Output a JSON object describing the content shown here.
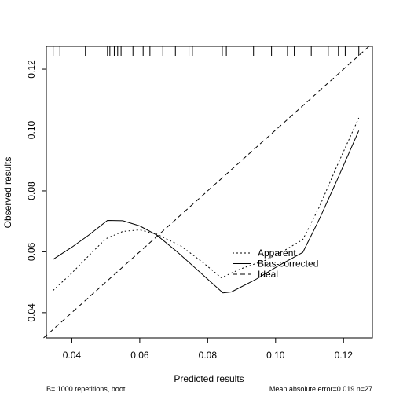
{
  "chart_data": {
    "type": "line",
    "title": "",
    "xlabel": "Predicted results",
    "ylabel": "Observed results",
    "xlim": [
      0.0325,
      0.1285
    ],
    "ylim": [
      0.0317,
      0.1275
    ],
    "x_ticks": [
      0.04,
      0.06,
      0.08,
      0.1,
      0.12
    ],
    "x_tick_labels": [
      "0.04",
      "0.06",
      "0.08",
      "0.10",
      "0.12"
    ],
    "y_ticks": [
      0.04,
      0.06,
      0.08,
      0.1,
      0.12
    ],
    "y_tick_labels": [
      "0.04",
      "0.06",
      "0.08",
      "0.10",
      "0.12"
    ],
    "grid": false,
    "legend_position": "center-right",
    "series": [
      {
        "name": "Apparent",
        "line_style": "dotted",
        "x": [
          0.0345,
          0.04,
          0.045,
          0.05,
          0.055,
          0.06,
          0.065,
          0.072,
          0.078,
          0.084,
          0.09,
          0.097,
          0.103,
          0.108,
          0.113,
          0.118,
          0.1245
        ],
        "y": [
          0.0473,
          0.053,
          0.0587,
          0.0643,
          0.0667,
          0.0672,
          0.0658,
          0.062,
          0.057,
          0.0515,
          0.0545,
          0.0572,
          0.0607,
          0.064,
          0.075,
          0.088,
          0.104
        ]
      },
      {
        "name": "Bias-corrected",
        "line_style": "solid",
        "x": [
          0.0345,
          0.04,
          0.045,
          0.0505,
          0.055,
          0.06,
          0.065,
          0.071,
          0.078,
          0.0845,
          0.087,
          0.094,
          0.101,
          0.108,
          0.113,
          0.118,
          0.1245
        ],
        "y": [
          0.0575,
          0.0615,
          0.0655,
          0.0703,
          0.0702,
          0.0685,
          0.0655,
          0.06,
          0.053,
          0.0465,
          0.0468,
          0.0508,
          0.0555,
          0.0598,
          0.071,
          0.0833,
          0.0998
        ]
      },
      {
        "name": "Ideal",
        "line_style": "dashed",
        "x": [
          0.0317,
          0.1275
        ],
        "y": [
          0.0317,
          0.1275
        ]
      }
    ],
    "rug_ticks_x": [
      0.0345,
      0.0365,
      0.044,
      0.0505,
      0.0512,
      0.0525,
      0.0535,
      0.0545,
      0.058,
      0.061,
      0.063,
      0.0668,
      0.0705,
      0.0745,
      0.0755,
      0.0843,
      0.0855,
      0.0935,
      0.0988,
      0.1035,
      0.1055,
      0.1105,
      0.1155,
      0.1185,
      0.1205,
      0.1245
    ],
    "footer_left": "B= 1000 repetitions, boot",
    "footer_right": "Mean absolute error=0.019 n=27"
  }
}
